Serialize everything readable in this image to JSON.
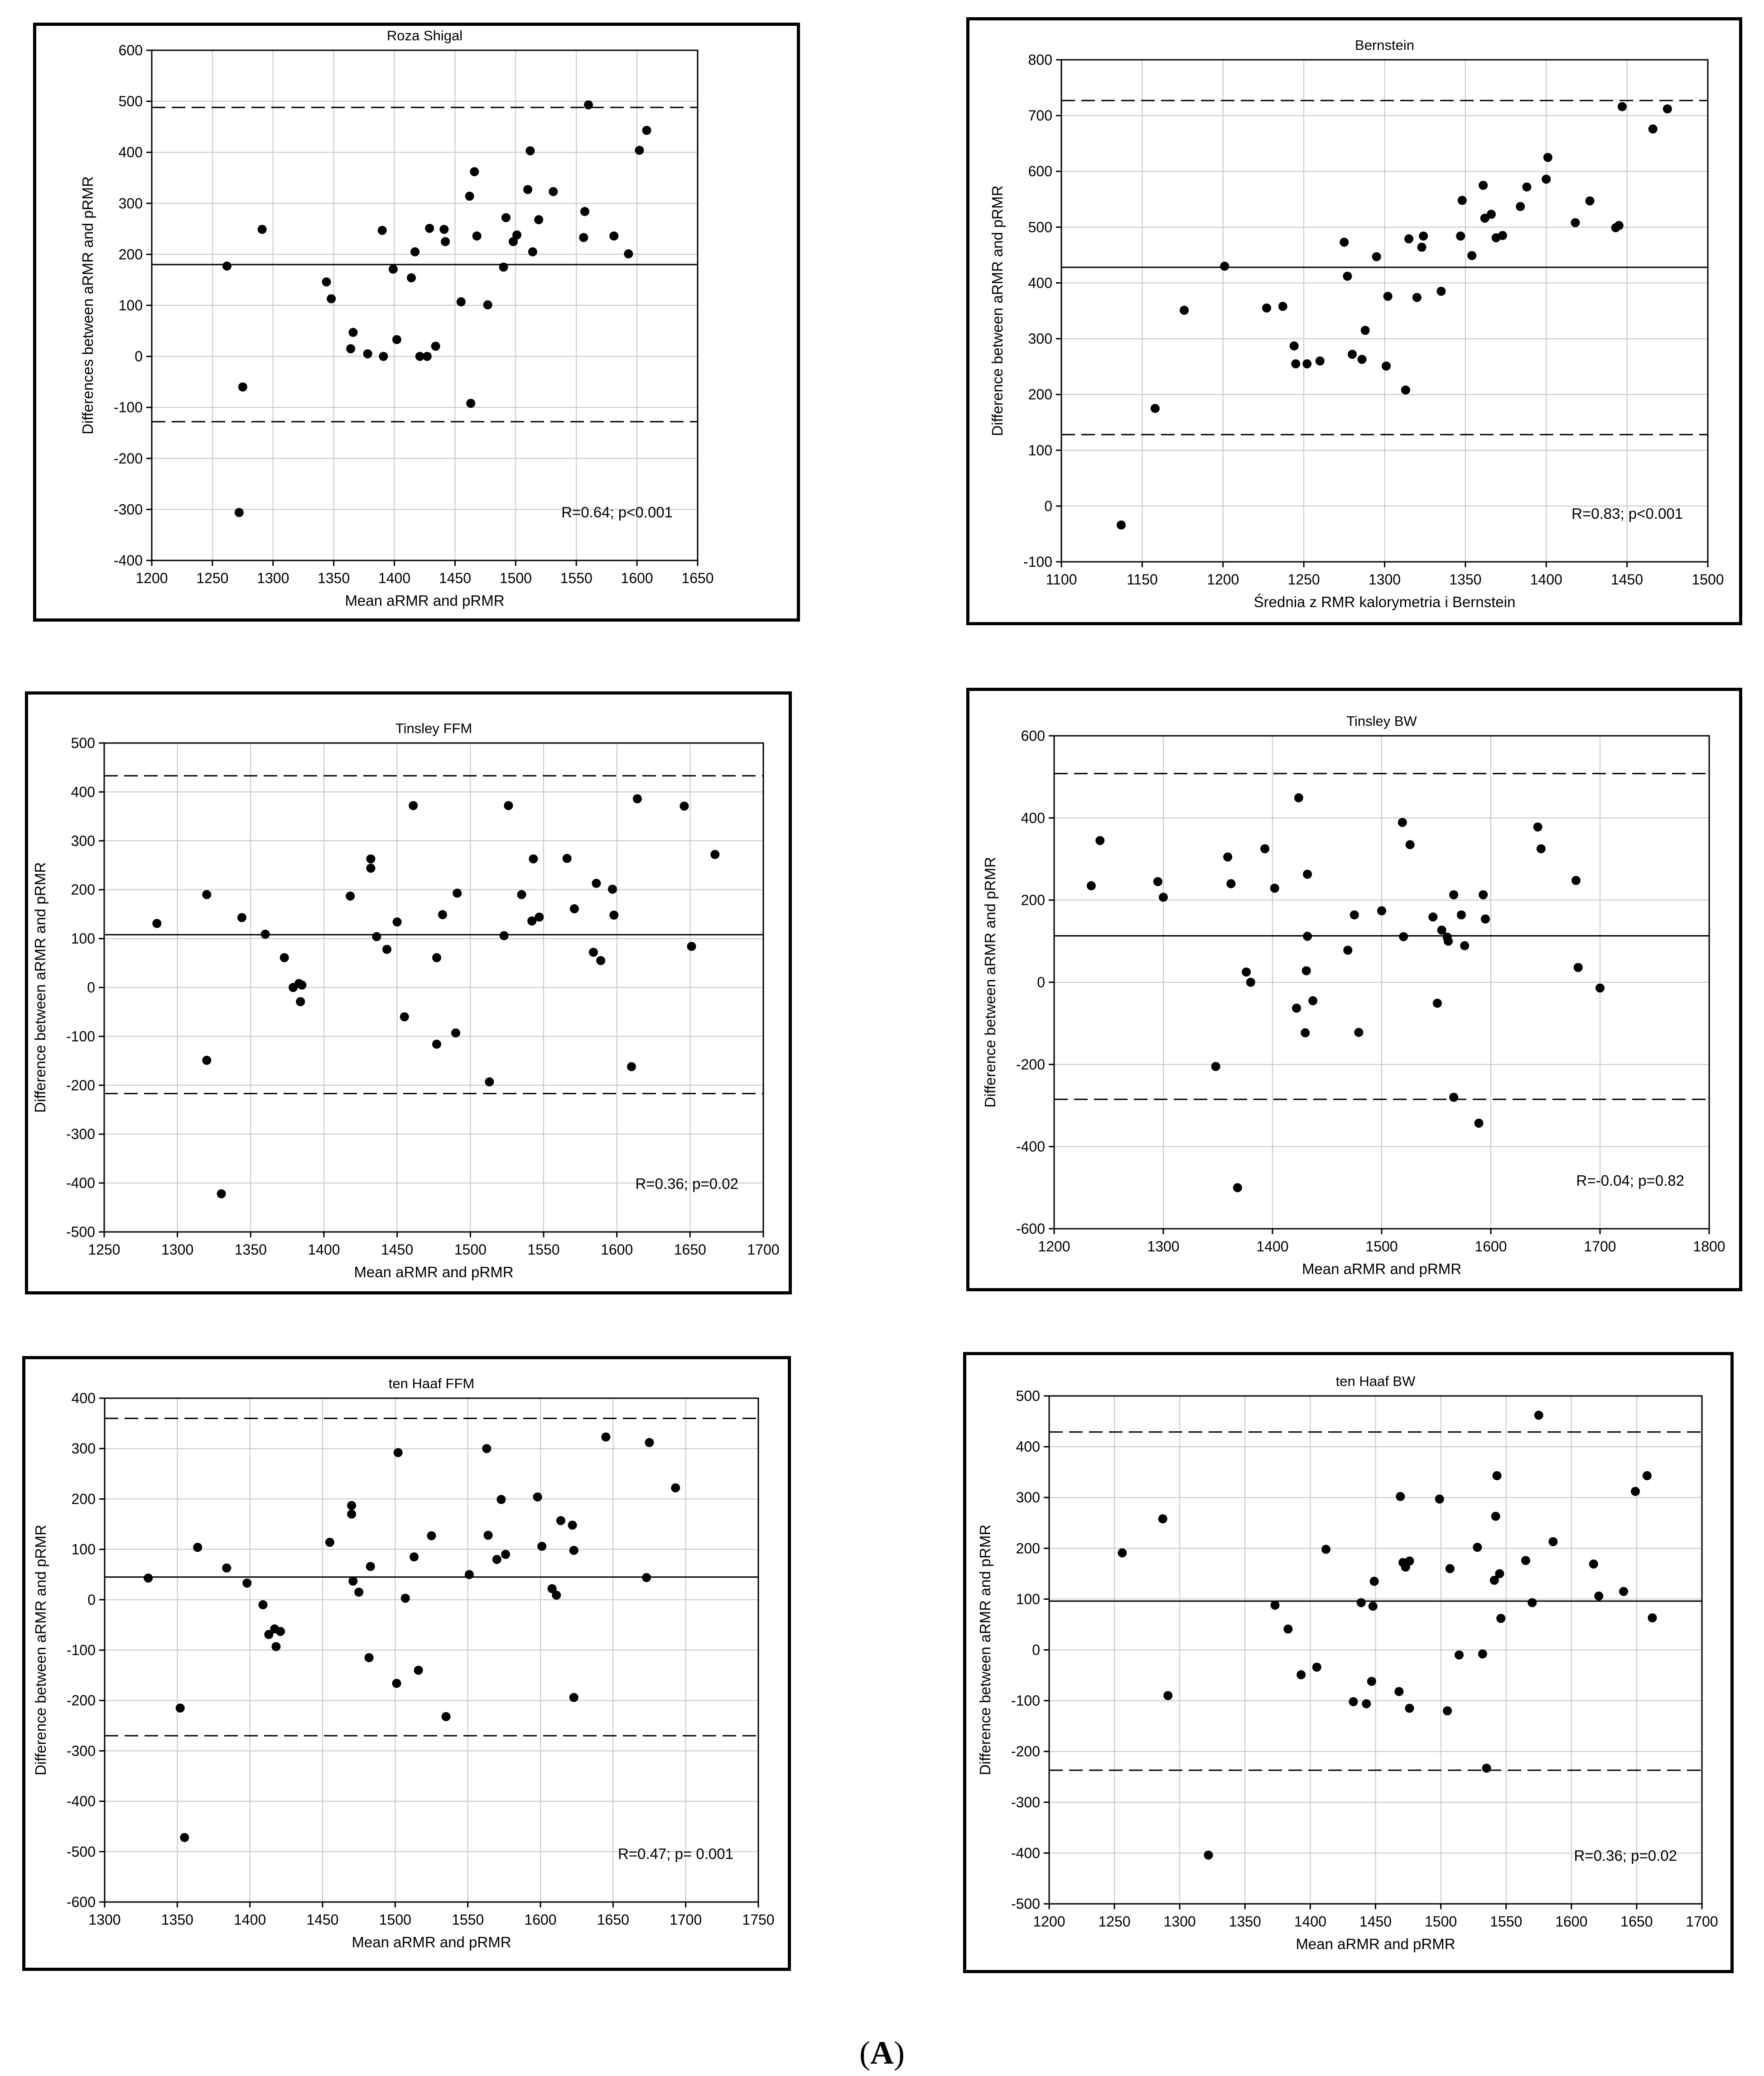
{
  "caption": {
    "open": "(",
    "letter": "A",
    "close": ")"
  },
  "colors": {
    "points": "#000000",
    "grid": "#c8c8c8",
    "frame": "#000000"
  },
  "chart_data": [
    {
      "type": "scatter",
      "title": "Roza Shigal",
      "xlabel": "Mean aRMR and pRMR",
      "ylabel": "Differences between aRMR and pRMR",
      "xlim": [
        1200,
        1650
      ],
      "ylim": [
        -400,
        600
      ],
      "xticks": [
        1200,
        1250,
        1300,
        1350,
        1400,
        1450,
        1500,
        1550,
        1600,
        1650
      ],
      "yticks": [
        -400,
        -300,
        -200,
        -100,
        0,
        100,
        200,
        300,
        400,
        500,
        600
      ],
      "mean": 180,
      "loa_upper": 488,
      "loa_lower": -128,
      "annotation": "R=0.64; p<0.001",
      "points": [
        [
          1262,
          177
        ],
        [
          1275,
          -60
        ],
        [
          1272,
          -306
        ],
        [
          1291,
          249
        ],
        [
          1344,
          146
        ],
        [
          1348,
          113
        ],
        [
          1364,
          15
        ],
        [
          1366,
          47
        ],
        [
          1378,
          5
        ],
        [
          1390,
          247
        ],
        [
          1391,
          0
        ],
        [
          1399,
          171
        ],
        [
          1402,
          33
        ],
        [
          1414,
          154
        ],
        [
          1417,
          205
        ],
        [
          1421,
          0
        ],
        [
          1427,
          0
        ],
        [
          1429,
          251
        ],
        [
          1434,
          20
        ],
        [
          1441,
          249
        ],
        [
          1442,
          225
        ],
        [
          1455,
          107
        ],
        [
          1462,
          314
        ],
        [
          1463,
          -92
        ],
        [
          1466,
          362
        ],
        [
          1468,
          236
        ],
        [
          1477,
          101
        ],
        [
          1490,
          175
        ],
        [
          1492,
          272
        ],
        [
          1498,
          225
        ],
        [
          1501,
          238
        ],
        [
          1510,
          327
        ],
        [
          1512,
          403
        ],
        [
          1514,
          205
        ],
        [
          1519,
          268
        ],
        [
          1531,
          323
        ],
        [
          1556,
          233
        ],
        [
          1557,
          284
        ],
        [
          1560,
          493
        ],
        [
          1581,
          236
        ],
        [
          1593,
          201
        ],
        [
          1602,
          404
        ],
        [
          1608,
          443
        ]
      ]
    },
    {
      "type": "scatter",
      "title": "Bernstein",
      "xlabel": "Średnia z RMR kalorymetria i Bernstein",
      "ylabel": "Difference between aRMR and pRMR",
      "xlim": [
        1100,
        1500
      ],
      "ylim": [
        -100,
        800
      ],
      "xticks": [
        1100,
        1150,
        1200,
        1250,
        1300,
        1350,
        1400,
        1450,
        1500
      ],
      "yticks": [
        -100,
        0,
        100,
        200,
        300,
        400,
        500,
        600,
        700,
        800
      ],
      "mean": 428,
      "loa_upper": 727,
      "loa_lower": 128,
      "annotation": "R=0.83; p<0.001",
      "points": [
        [
          1137,
          -34
        ],
        [
          1158,
          175
        ],
        [
          1176,
          351
        ],
        [
          1201,
          430
        ],
        [
          1227,
          355
        ],
        [
          1237,
          358
        ],
        [
          1244,
          287
        ],
        [
          1245,
          255
        ],
        [
          1252,
          255
        ],
        [
          1260,
          260
        ],
        [
          1275,
          473
        ],
        [
          1277,
          412
        ],
        [
          1280,
          272
        ],
        [
          1286,
          263
        ],
        [
          1288,
          315
        ],
        [
          1295,
          447
        ],
        [
          1301,
          251
        ],
        [
          1302,
          376
        ],
        [
          1313,
          208
        ],
        [
          1315,
          479
        ],
        [
          1320,
          374
        ],
        [
          1323,
          464
        ],
        [
          1324,
          484
        ],
        [
          1335,
          385
        ],
        [
          1347,
          484
        ],
        [
          1348,
          548
        ],
        [
          1354,
          449
        ],
        [
          1361,
          575
        ],
        [
          1362,
          516
        ],
        [
          1366,
          523
        ],
        [
          1369,
          481
        ],
        [
          1373,
          485
        ],
        [
          1384,
          537
        ],
        [
          1388,
          572
        ],
        [
          1400,
          586
        ],
        [
          1401,
          625
        ],
        [
          1418,
          508
        ],
        [
          1427,
          547
        ],
        [
          1443,
          499
        ],
        [
          1445,
          503
        ],
        [
          1447,
          716
        ],
        [
          1466,
          676
        ],
        [
          1475,
          712
        ]
      ]
    },
    {
      "type": "scatter",
      "title": "Tinsley FFM",
      "xlabel": "Mean aRMR and pRMR",
      "ylabel": "Difference between aRMR and pRMR",
      "xlim": [
        1250,
        1700
      ],
      "ylim": [
        -500,
        500
      ],
      "xticks": [
        1250,
        1300,
        1350,
        1400,
        1450,
        1500,
        1550,
        1600,
        1650,
        1700
      ],
      "yticks": [
        -500,
        -400,
        -300,
        -200,
        -100,
        0,
        100,
        200,
        300,
        400,
        500
      ],
      "mean": 108,
      "loa_upper": 433,
      "loa_lower": -217,
      "annotation": "R=0.36; p=0.02",
      "points": [
        [
          1286,
          131
        ],
        [
          1320,
          190
        ],
        [
          1320,
          -149
        ],
        [
          1330,
          -422
        ],
        [
          1344,
          143
        ],
        [
          1360,
          109
        ],
        [
          1373,
          61
        ],
        [
          1379,
          0
        ],
        [
          1383,
          8
        ],
        [
          1384,
          -29
        ],
        [
          1385,
          5
        ],
        [
          1418,
          187
        ],
        [
          1432,
          263
        ],
        [
          1432,
          244
        ],
        [
          1436,
          104
        ],
        [
          1443,
          78
        ],
        [
          1450,
          134
        ],
        [
          1455,
          -60
        ],
        [
          1461,
          372
        ],
        [
          1477,
          61
        ],
        [
          1477,
          -116
        ],
        [
          1481,
          149
        ],
        [
          1490,
          -93
        ],
        [
          1491,
          193
        ],
        [
          1513,
          -193
        ],
        [
          1523,
          106
        ],
        [
          1526,
          372
        ],
        [
          1535,
          190
        ],
        [
          1542,
          136
        ],
        [
          1543,
          263
        ],
        [
          1547,
          144
        ],
        [
          1566,
          264
        ],
        [
          1571,
          161
        ],
        [
          1584,
          72
        ],
        [
          1586,
          213
        ],
        [
          1589,
          55
        ],
        [
          1597,
          201
        ],
        [
          1598,
          148
        ],
        [
          1610,
          -162
        ],
        [
          1614,
          386
        ],
        [
          1646,
          371
        ],
        [
          1651,
          84
        ],
        [
          1667,
          272
        ]
      ]
    },
    {
      "type": "scatter",
      "title": "Tinsley BW",
      "xlabel": "Mean aRMR and pRMR",
      "ylabel": "Difference between aRMR and pRMR",
      "xlim": [
        1200,
        1800
      ],
      "ylim": [
        -600,
        600
      ],
      "xticks": [
        1200,
        1300,
        1400,
        1500,
        1600,
        1700,
        1800
      ],
      "yticks": [
        -600,
        -400,
        -200,
        0,
        200,
        400,
        600
      ],
      "mean": 113,
      "loa_upper": 508,
      "loa_lower": -285,
      "annotation": "R=-0.04; p=0.82",
      "points": [
        [
          1234,
          235
        ],
        [
          1242,
          345
        ],
        [
          1295,
          245
        ],
        [
          1300,
          207
        ],
        [
          1348,
          -205
        ],
        [
          1359,
          305
        ],
        [
          1362,
          240
        ],
        [
          1368,
          -500
        ],
        [
          1376,
          25
        ],
        [
          1380,
          0
        ],
        [
          1393,
          325
        ],
        [
          1402,
          229
        ],
        [
          1422,
          -63
        ],
        [
          1424,
          449
        ],
        [
          1430,
          -123
        ],
        [
          1432,
          263
        ],
        [
          1432,
          112
        ],
        [
          1431,
          28
        ],
        [
          1437,
          -45
        ],
        [
          1475,
          164
        ],
        [
          1469,
          78
        ],
        [
          1479,
          -122
        ],
        [
          1500,
          174
        ],
        [
          1519,
          389
        ],
        [
          1520,
          111
        ],
        [
          1526,
          335
        ],
        [
          1547,
          159
        ],
        [
          1551,
          -51
        ],
        [
          1555,
          127
        ],
        [
          1560,
          110
        ],
        [
          1561,
          100
        ],
        [
          1566,
          -280
        ],
        [
          1566,
          213
        ],
        [
          1573,
          164
        ],
        [
          1576,
          89
        ],
        [
          1589,
          -343
        ],
        [
          1593,
          213
        ],
        [
          1595,
          154
        ],
        [
          1643,
          378
        ],
        [
          1646,
          325
        ],
        [
          1678,
          248
        ],
        [
          1680,
          36
        ],
        [
          1700,
          -14
        ]
      ]
    },
    {
      "type": "scatter",
      "title": "ten Haaf FFM",
      "xlabel": "Mean aRMR and pRMR",
      "ylabel": "Difference between aRMR and pRMR",
      "xlim": [
        1300,
        1750
      ],
      "ylim": [
        -600,
        400
      ],
      "xticks": [
        1300,
        1350,
        1400,
        1450,
        1500,
        1550,
        1600,
        1650,
        1700,
        1750
      ],
      "yticks": [
        -600,
        -500,
        -400,
        -300,
        -200,
        -100,
        0,
        100,
        200,
        300,
        400
      ],
      "mean": 45,
      "loa_upper": 360,
      "loa_lower": -270,
      "annotation": "R=0.47; p= 0.001",
      "points": [
        [
          1330,
          43
        ],
        [
          1352,
          -215
        ],
        [
          1355,
          -472
        ],
        [
          1364,
          104
        ],
        [
          1384,
          63
        ],
        [
          1398,
          33
        ],
        [
          1409,
          -10
        ],
        [
          1413,
          -69
        ],
        [
          1417,
          -58
        ],
        [
          1418,
          -93
        ],
        [
          1421,
          -63
        ],
        [
          1455,
          114
        ],
        [
          1470,
          187
        ],
        [
          1470,
          170
        ],
        [
          1471,
          37
        ],
        [
          1475,
          15
        ],
        [
          1482,
          -115
        ],
        [
          1483,
          66
        ],
        [
          1501,
          -166
        ],
        [
          1502,
          292
        ],
        [
          1507,
          3
        ],
        [
          1513,
          85
        ],
        [
          1516,
          -140
        ],
        [
          1525,
          127
        ],
        [
          1535,
          -232
        ],
        [
          1551,
          50
        ],
        [
          1563,
          300
        ],
        [
          1564,
          128
        ],
        [
          1570,
          80
        ],
        [
          1573,
          199
        ],
        [
          1576,
          90
        ],
        [
          1598,
          204
        ],
        [
          1601,
          106
        ],
        [
          1608,
          22
        ],
        [
          1611,
          9
        ],
        [
          1614,
          157
        ],
        [
          1622,
          148
        ],
        [
          1623,
          -194
        ],
        [
          1623,
          98
        ],
        [
          1645,
          323
        ],
        [
          1673,
          44
        ],
        [
          1675,
          312
        ],
        [
          1693,
          222
        ]
      ]
    },
    {
      "type": "scatter",
      "title": "ten Haaf BW",
      "xlabel": "Mean aRMR and pRMR",
      "ylabel": "Difference between aRMR and pRMR",
      "xlim": [
        1200,
        1700
      ],
      "ylim": [
        -500,
        500
      ],
      "xticks": [
        1200,
        1250,
        1300,
        1350,
        1400,
        1450,
        1500,
        1550,
        1600,
        1650,
        1700
      ],
      "yticks": [
        -500,
        -400,
        -300,
        -200,
        -100,
        0,
        100,
        200,
        300,
        400,
        500
      ],
      "mean": 96,
      "loa_upper": 429,
      "loa_lower": -237,
      "annotation": "R=0.36; p=0.02",
      "points": [
        [
          1256,
          191
        ],
        [
          1287,
          258
        ],
        [
          1291,
          -90
        ],
        [
          1322,
          -404
        ],
        [
          1373,
          88
        ],
        [
          1383,
          41
        ],
        [
          1393,
          -49
        ],
        [
          1405,
          -34
        ],
        [
          1412,
          198
        ],
        [
          1433,
          -102
        ],
        [
          1439,
          93
        ],
        [
          1443,
          -106
        ],
        [
          1447,
          -62
        ],
        [
          1449,
          135
        ],
        [
          1448,
          86
        ],
        [
          1468,
          -82
        ],
        [
          1469,
          302
        ],
        [
          1471,
          172
        ],
        [
          1473,
          163
        ],
        [
          1476,
          175
        ],
        [
          1476,
          -115
        ],
        [
          1499,
          297
        ],
        [
          1505,
          -120
        ],
        [
          1507,
          160
        ],
        [
          1514,
          -10
        ],
        [
          1528,
          202
        ],
        [
          1532,
          -8
        ],
        [
          1535,
          -233
        ],
        [
          1541,
          137
        ],
        [
          1542,
          263
        ],
        [
          1543,
          343
        ],
        [
          1545,
          150
        ],
        [
          1546,
          62
        ],
        [
          1565,
          176
        ],
        [
          1570,
          93
        ],
        [
          1575,
          462
        ],
        [
          1586,
          213
        ],
        [
          1617,
          169
        ],
        [
          1621,
          106
        ],
        [
          1640,
          115
        ],
        [
          1649,
          312
        ],
        [
          1658,
          343
        ],
        [
          1662,
          63
        ]
      ]
    }
  ]
}
